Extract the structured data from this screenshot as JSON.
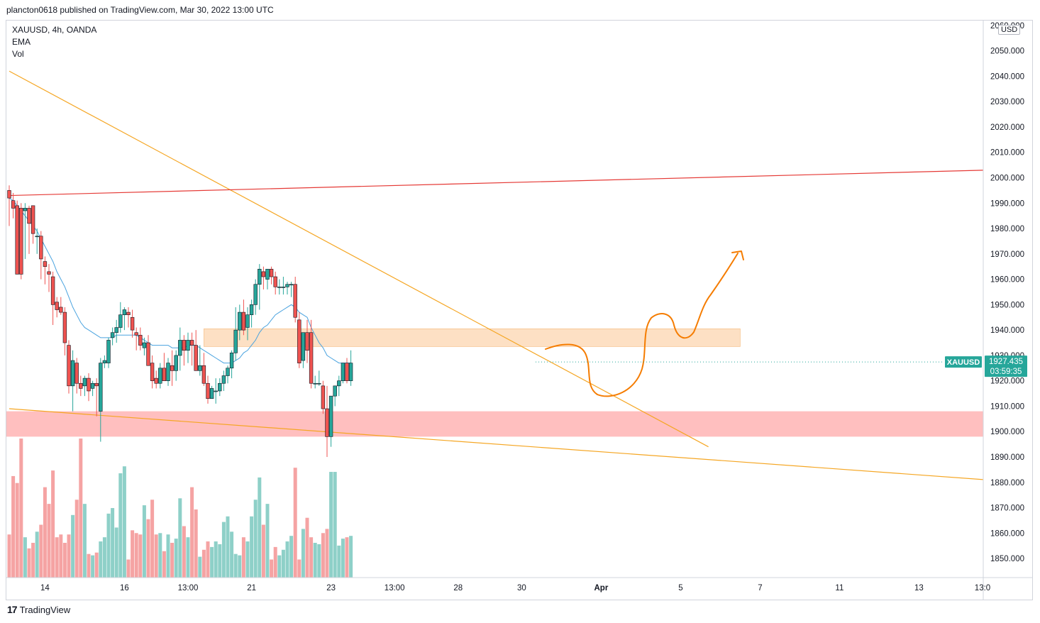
{
  "publish": {
    "text": "plancton0618 published on TradingView.com, Mar 30, 2022 13:00 UTC"
  },
  "legend": {
    "symbol": "XAUUSD, 4h, OANDA",
    "indicator_1": "EMA",
    "indicator_2": "Vol"
  },
  "currency": "USD",
  "price_tag": {
    "symbol": "XAUUSD",
    "price": "1927.435",
    "countdown": "03:59:35"
  },
  "footer": {
    "logo": "17",
    "brand": "TradingView"
  },
  "colors": {
    "up": "#26a69a",
    "down": "#ef5350",
    "up_vol": "#8ed0c8",
    "down_vol": "#f5a3a3",
    "ema": "#4aa3df",
    "trendline": "#f5a623",
    "resistance_red": "#e53935",
    "support_zone": "#ffbcbc",
    "resistance_zone": "#fcd5b0",
    "drawing": "#f57c00",
    "tag_bg": "#26a69a"
  },
  "chart_data": {
    "type": "candlestick",
    "y_ticks": [
      "2060.000",
      "2050.000",
      "2040.000",
      "2030.000",
      "2020.000",
      "2010.000",
      "2000.000",
      "1990.000",
      "1980.000",
      "1970.000",
      "1960.000",
      "1950.000",
      "1940.000",
      "1930.000",
      "1920.000",
      "1910.000",
      "1900.000",
      "1890.000",
      "1880.000",
      "1870.000",
      "1860.000",
      "1850.000"
    ],
    "y_tick_values": [
      2060,
      2050,
      2040,
      2030,
      2020,
      2010,
      2000,
      1990,
      1980,
      1970,
      1960,
      1950,
      1940,
      1930,
      1920,
      1910,
      1900,
      1890,
      1880,
      1870,
      1860,
      1850
    ],
    "ylim": [
      1840.8,
      2060.8
    ],
    "x_ticks": [
      "14",
      "16",
      "13:00",
      "21",
      "23",
      "13:00",
      "28",
      "30",
      "Apr",
      "5",
      "7",
      "11",
      "13",
      "13:0"
    ],
    "x_tick_bold": [
      false,
      false,
      false,
      false,
      false,
      false,
      false,
      false,
      true,
      false,
      false,
      false,
      false,
      false
    ],
    "x_tick_bar_index": [
      9,
      29,
      45,
      61,
      81,
      97,
      113,
      129,
      149,
      169,
      189,
      209,
      229,
      245
    ],
    "bar_count_visible": 246,
    "candles": [
      [
        1995,
        1997,
        1981,
        1992
      ],
      [
        1991,
        1994,
        1984,
        1988
      ],
      [
        1989,
        1991,
        1962,
        1962
      ],
      [
        1988,
        1990,
        1960,
        1962
      ],
      [
        1987,
        1990,
        1968,
        1988
      ],
      [
        1988,
        1989,
        1970,
        1982
      ],
      [
        1989,
        1989,
        1974,
        1978
      ],
      [
        1977,
        1980,
        1970,
        1977
      ],
      [
        1977,
        1979,
        1960,
        1968
      ],
      [
        1967,
        1969,
        1958,
        1965
      ],
      [
        1963,
        1966,
        1955,
        1962
      ],
      [
        1961,
        1963,
        1942,
        1950
      ],
      [
        1951,
        1953,
        1945,
        1948
      ],
      [
        1949,
        1953,
        1946,
        1947
      ],
      [
        1947,
        1949,
        1930,
        1935
      ],
      [
        1934,
        1936,
        1915,
        1918
      ],
      [
        1918,
        1932,
        1908,
        1928
      ],
      [
        1927,
        1929,
        1915,
        1919
      ],
      [
        1919,
        1922,
        1914,
        1917
      ],
      [
        1918,
        1922,
        1914,
        1921
      ],
      [
        1921,
        1923,
        1912,
        1916
      ],
      [
        1917,
        1920,
        1914,
        1919
      ],
      [
        1919,
        1921,
        1906,
        1918
      ],
      [
        1908,
        1929,
        1896,
        1927
      ],
      [
        1927,
        1930,
        1925,
        1928
      ],
      [
        1927,
        1937,
        1925,
        1936
      ],
      [
        1937,
        1941,
        1934,
        1939
      ],
      [
        1939,
        1944,
        1935,
        1941
      ],
      [
        1941,
        1951,
        1939,
        1946
      ],
      [
        1946,
        1949,
        1940,
        1948
      ],
      [
        1947,
        1949,
        1941,
        1946
      ],
      [
        1945,
        1948,
        1937,
        1940
      ],
      [
        1939,
        1941,
        1932,
        1938
      ],
      [
        1938,
        1941,
        1932,
        1934
      ],
      [
        1933,
        1937,
        1930,
        1935
      ],
      [
        1935,
        1938,
        1926,
        1926
      ],
      [
        1927,
        1930,
        1917,
        1920
      ],
      [
        1921,
        1924,
        1917,
        1919
      ],
      [
        1919,
        1927,
        1917,
        1925
      ],
      [
        1925,
        1931,
        1921,
        1920
      ],
      [
        1920,
        1929,
        1918,
        1927
      ],
      [
        1926,
        1932,
        1918,
        1924
      ],
      [
        1924,
        1932,
        1920,
        1930
      ],
      [
        1930,
        1941,
        1924,
        1936
      ],
      [
        1936,
        1938,
        1926,
        1932
      ],
      [
        1932,
        1939,
        1927,
        1936
      ],
      [
        1936,
        1939,
        1926,
        1934
      ],
      [
        1934,
        1940,
        1924,
        1924
      ],
      [
        1924,
        1934,
        1922,
        1926
      ],
      [
        1926,
        1931,
        1918,
        1919
      ],
      [
        1919,
        1922,
        1911,
        1913
      ],
      [
        1913,
        1918,
        1913,
        1917
      ],
      [
        1916,
        1921,
        1911,
        1916
      ],
      [
        1916,
        1921,
        1914,
        1919
      ],
      [
        1919,
        1924,
        1916,
        1922
      ],
      [
        1922,
        1926,
        1919,
        1925
      ],
      [
        1925,
        1932,
        1921,
        1931
      ],
      [
        1931,
        1949,
        1928,
        1940
      ],
      [
        1940,
        1950,
        1936,
        1947
      ],
      [
        1947,
        1952,
        1938,
        1940
      ],
      [
        1941,
        1949,
        1936,
        1946
      ],
      [
        1946,
        1952,
        1941,
        1950
      ],
      [
        1950,
        1960,
        1946,
        1958
      ],
      [
        1958,
        1966,
        1948,
        1964
      ],
      [
        1963,
        1965,
        1956,
        1961
      ],
      [
        1960,
        1964,
        1956,
        1964
      ],
      [
        1964,
        1965,
        1958,
        1961
      ],
      [
        1961,
        1963,
        1954,
        1957
      ],
      [
        1957,
        1960,
        1954,
        1957
      ],
      [
        1957,
        1961,
        1954,
        1957
      ],
      [
        1957,
        1959,
        1954,
        1958
      ],
      [
        1958,
        1959,
        1953,
        1958
      ],
      [
        1958,
        1961,
        1943,
        1945
      ],
      [
        1944,
        1947,
        1925,
        1927
      ],
      [
        1928,
        1939,
        1925,
        1939
      ],
      [
        1939,
        1944,
        1927,
        1932
      ],
      [
        1939,
        1944,
        1917,
        1919
      ],
      [
        1919,
        1922,
        1917,
        1919
      ],
      [
        1919,
        1924,
        1918,
        1919
      ],
      [
        1918,
        1920,
        1907,
        1909
      ],
      [
        1909,
        1918,
        1890,
        1898
      ],
      [
        1898,
        1914,
        1894,
        1914
      ],
      [
        1914,
        1918,
        1910,
        1918
      ],
      [
        1918,
        1922,
        1914,
        1920
      ],
      [
        1920,
        1927,
        1919,
        1927
      ],
      [
        1927,
        1929,
        1919,
        1920
      ],
      [
        1920,
        1932,
        1918,
        1927
      ]
    ],
    "candle_first_index": 0,
    "volume_relative": [
      0.31,
      0.73,
      0.68,
      1.0,
      0.29,
      0.21,
      0.25,
      0.33,
      0.38,
      0.65,
      0.53,
      0.77,
      0.29,
      0.31,
      0.25,
      0.31,
      0.45,
      0.56,
      1.0,
      0.53,
      0.17,
      0.16,
      0.18,
      0.26,
      0.29,
      0.46,
      0.5,
      0.36,
      0.75,
      0.8,
      0.13,
      0.34,
      0.32,
      0.31,
      0.52,
      0.42,
      0.56,
      0.31,
      0.32,
      0.19,
      0.31,
      0.25,
      0.28,
      0.57,
      0.37,
      0.29,
      0.65,
      0.49,
      0.15,
      0.2,
      0.26,
      0.22,
      0.26,
      0.24,
      0.4,
      0.44,
      0.33,
      0.17,
      0.16,
      0.29,
      0.26,
      0.44,
      0.56,
      0.72,
      0.38,
      0.53,
      0.13,
      0.22,
      0.16,
      0.2,
      0.26,
      0.3,
      0.79,
      0.13,
      0.35,
      0.43,
      0.29,
      0.25,
      0.24,
      0.32,
      0.35,
      0.76,
      0.76,
      0.23,
      0.28,
      0.29,
      0.3
    ],
    "ema": [
      1992,
      1991,
      1989,
      1987,
      1985,
      1983,
      1981,
      1979,
      1976,
      1973,
      1970,
      1967,
      1963,
      1960,
      1957,
      1953,
      1949,
      1946,
      1943,
      1941,
      1940,
      1939,
      1938,
      1937,
      1937,
      1937,
      1937,
      1938,
      1938,
      1938,
      1938,
      1938,
      1938,
      1937,
      1936,
      1935,
      1934,
      1934,
      1934,
      1934,
      1934,
      1933,
      1933,
      1933,
      1933,
      1934,
      1934,
      1934,
      1933,
      1932,
      1931,
      1930,
      1929,
      1928,
      1927,
      1927,
      1927,
      1928,
      1929,
      1931,
      1932,
      1934,
      1936,
      1939,
      1941,
      1942,
      1944,
      1946,
      1947,
      1948,
      1949,
      1950,
      1949,
      1947,
      1946,
      1945,
      1941,
      1938,
      1935,
      1933,
      1930,
      1929,
      1928,
      1927,
      1927,
      1927,
      1927
    ],
    "annotations": {
      "falling_trendline": [
        [
          0,
          2042
        ],
        [
          176,
          1894
        ]
      ],
      "lower_trendline": [
        [
          0,
          1909
        ],
        [
          246,
          1881
        ]
      ],
      "red_resistance_line": [
        [
          0,
          1993
        ],
        [
          246,
          2003
        ]
      ],
      "support_zone": [
        1898,
        1908
      ],
      "resistance_zone_bars": [
        49,
        184
      ],
      "resistance_zone": [
        1933.5,
        1940.5
      ]
    }
  }
}
